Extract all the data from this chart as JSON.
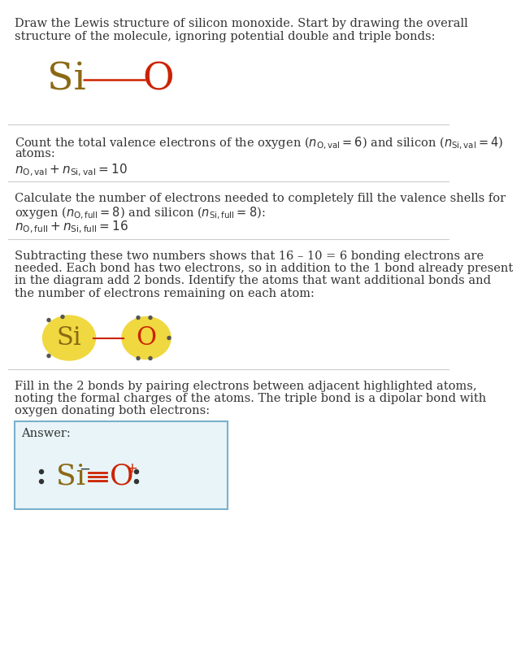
{
  "bg_color": "#ffffff",
  "text_color": "#333333",
  "si_color": "#8B6914",
  "o_color": "#cc2200",
  "highlight_yellow": "#f0d840",
  "bond_color": "#cc2200",
  "dot_color": "#555555",
  "sep_color": "#cccccc",
  "ans_box_bg": "#e8f4f8",
  "ans_box_border": "#7ab0cc",
  "section1_line1": "Draw the Lewis structure of silicon monoxide. Start by drawing the overall",
  "section1_line2": "structure of the molecule, ignoring potential double and triple bonds:",
  "section2_line1": "Count the total valence electrons of the oxygen ($n_{\\mathrm{O,val}} = 6$) and silicon ($n_{\\mathrm{Si,val}} = 4$)",
  "section2_line2": "atoms:",
  "section2_formula": "$n_{\\mathrm{O,val}} + n_{\\mathrm{Si,val}} = 10$",
  "section3_line1": "Calculate the number of electrons needed to completely fill the valence shells for",
  "section3_line2": "oxygen ($n_{\\mathrm{O,full}} = 8$) and silicon ($n_{\\mathrm{Si,full}} = 8$):",
  "section3_formula": "$n_{\\mathrm{O,full}} + n_{\\mathrm{Si,full}} = 16$",
  "section4_line1": "Subtracting these two numbers shows that 16 – 10 = 6 bonding electrons are",
  "section4_line2": "needed. Each bond has two electrons, so in addition to the 1 bond already present",
  "section4_line3": "in the diagram add 2 bonds. Identify the atoms that want additional bonds and",
  "section4_line4": "the number of electrons remaining on each atom:",
  "section5_line1": "Fill in the 2 bonds by pairing electrons between adjacent highlighted atoms,",
  "section5_line2": "noting the formal charges of the atoms. The triple bond is a dipolar bond with",
  "section5_line3": "oxygen donating both electrons:",
  "answer_label": "Answer:"
}
